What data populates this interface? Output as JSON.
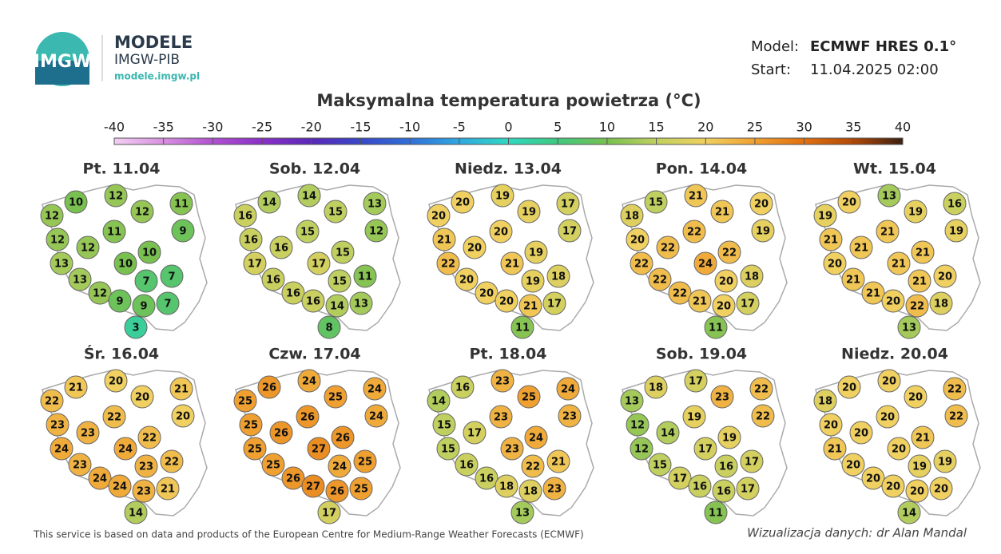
{
  "header": {
    "logo_text": "IMGW",
    "brand": "MODELE",
    "brand_sub": "IMGW-PIB",
    "url": "modele.imgw.pl",
    "model_label": "Model:",
    "model_value": "ECMWF HRES 0.1°",
    "start_label": "Start:",
    "start_value": "11.04.2025 02:00"
  },
  "title": "Maksymalna temperatura powietrza (°C)",
  "colorbar": {
    "ticks": [
      -40,
      -35,
      -30,
      -25,
      -20,
      -15,
      -10,
      -5,
      0,
      5,
      10,
      15,
      20,
      25,
      30,
      35,
      40
    ],
    "colors": [
      "#f2d0f2",
      "#d890e0",
      "#b050d0",
      "#8a30c8",
      "#5a28b8",
      "#3848c8",
      "#3070d8",
      "#30a8e0",
      "#30d8c0",
      "#40c880",
      "#78c050",
      "#c0d060",
      "#f0d060",
      "#f0a030",
      "#e07010",
      "#b04808",
      "#3a2010"
    ]
  },
  "maps": [
    {
      "title": "Pt. 11.04",
      "values": [
        10,
        12,
        11,
        12,
        12,
        9,
        11,
        12,
        12,
        10,
        13,
        10,
        13,
        7,
        7,
        12,
        9,
        9,
        7,
        3
      ]
    },
    {
      "title": "Sob. 12.04",
      "values": [
        14,
        14,
        13,
        16,
        15,
        12,
        15,
        16,
        16,
        15,
        17,
        17,
        16,
        15,
        11,
        16,
        16,
        14,
        13,
        8
      ]
    },
    {
      "title": "Niedz. 13.04",
      "values": [
        20,
        19,
        17,
        20,
        19,
        17,
        20,
        21,
        20,
        19,
        22,
        21,
        20,
        19,
        18,
        20,
        20,
        21,
        17,
        11
      ]
    },
    {
      "title": "Pon. 14.04",
      "values": [
        15,
        21,
        20,
        18,
        21,
        19,
        22,
        20,
        22,
        22,
        22,
        24,
        22,
        20,
        18,
        22,
        21,
        20,
        17,
        11
      ]
    },
    {
      "title": "Wt. 15.04",
      "values": [
        20,
        13,
        16,
        19,
        19,
        19,
        21,
        21,
        21,
        21,
        20,
        21,
        21,
        21,
        20,
        21,
        20,
        22,
        18,
        13
      ]
    },
    {
      "title": "Śr. 16.04",
      "values": [
        21,
        20,
        21,
        22,
        20,
        20,
        22,
        23,
        23,
        22,
        24,
        24,
        23,
        23,
        22,
        24,
        24,
        23,
        21,
        14
      ]
    },
    {
      "title": "Czw. 17.04",
      "values": [
        26,
        24,
        24,
        25,
        25,
        24,
        26,
        25,
        26,
        26,
        25,
        27,
        25,
        24,
        25,
        26,
        27,
        26,
        25,
        17
      ]
    },
    {
      "title": "Pt. 18.04",
      "values": [
        16,
        23,
        24,
        14,
        25,
        23,
        23,
        15,
        17,
        24,
        15,
        23,
        16,
        22,
        21,
        16,
        18,
        18,
        23,
        13
      ]
    },
    {
      "title": "Sob. 19.04",
      "values": [
        18,
        17,
        22,
        13,
        23,
        22,
        19,
        12,
        14,
        19,
        12,
        17,
        15,
        16,
        17,
        17,
        16,
        16,
        17,
        11
      ]
    },
    {
      "title": "Niedz. 20.04",
      "values": [
        20,
        20,
        22,
        18,
        20,
        22,
        20,
        20,
        20,
        21,
        21,
        20,
        20,
        19,
        19,
        20,
        20,
        20,
        20,
        14
      ]
    }
  ],
  "footer": {
    "credit": "This service is based on data and products of the European Centre for Medium-Range Weather Forecasts (ECMWF)",
    "author": "Wizualizacja danych: dr Alan Mandal"
  }
}
